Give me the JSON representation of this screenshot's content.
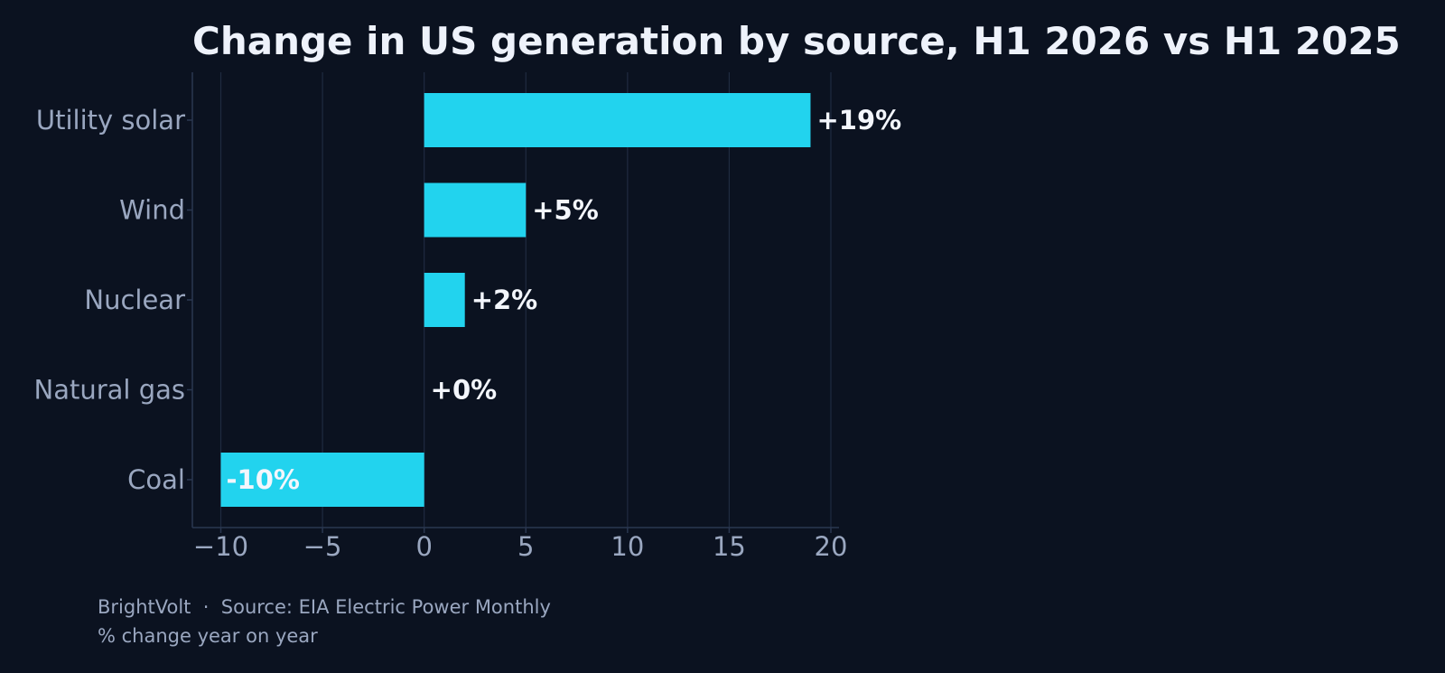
{
  "colors": {
    "background": "#0b1220",
    "bar": "#22d3ee",
    "grid": "#1f2b40",
    "axis": "#2a3750",
    "title": "#eef2fb",
    "label": "#9aa7c0",
    "data_label": "#f3f6fc"
  },
  "footer": {
    "line1": "BrightVolt  ·  Source: EIA Electric Power Monthly",
    "line2": "% change year on year"
  },
  "chart_data": {
    "type": "bar",
    "orientation": "horizontal",
    "title": "Change in US generation by source, H1 2026 vs H1 2025",
    "xlabel": "",
    "ylabel": "",
    "categories": [
      "Utility solar",
      "Wind",
      "Nuclear",
      "Natural gas",
      "Coal"
    ],
    "values": [
      19,
      5,
      2,
      0,
      -10
    ],
    "data_labels": [
      "+19%",
      "+5%",
      "+2%",
      "+0%",
      "-10%"
    ],
    "xlim": [
      -11.4,
      20.4
    ],
    "x_ticks": [
      -10,
      -5,
      0,
      5,
      10,
      15,
      20
    ],
    "x_tick_labels": [
      "−10",
      "−5",
      "0",
      "5",
      "10",
      "15",
      "20"
    ],
    "grid": "vertical",
    "legend": "none"
  }
}
